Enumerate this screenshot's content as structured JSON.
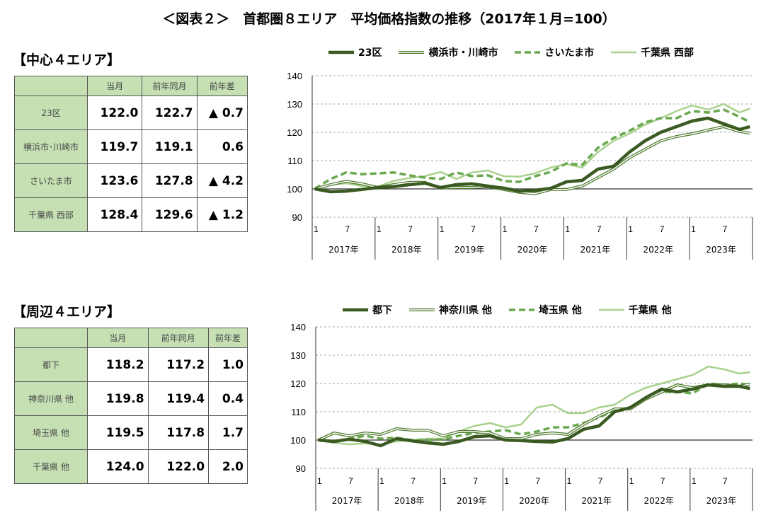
{
  "title": "＜図表２＞　首都圏８エリア　平均価格指数の推移（2017年１月=100）",
  "colors": {
    "header_bg": "#c6e0b4",
    "dark": "#3a5a22",
    "double": "#4e7a2e",
    "dashed": "#6aa84f",
    "light": "#a9d18e"
  },
  "tables": [
    {
      "heading": "【中心４エリア】",
      "columns": [
        "",
        "当月",
        "前年同月",
        "前年差"
      ],
      "rows": [
        {
          "label": "23区",
          "current": "122.0",
          "prev_year": "122.7",
          "diff": "▲ 0.7"
        },
        {
          "label": "横浜市･川崎市",
          "current": "119.7",
          "prev_year": "119.1",
          "diff": "0.6"
        },
        {
          "label": "さいたま市",
          "current": "123.6",
          "prev_year": "127.8",
          "diff": "▲ 4.2"
        },
        {
          "label": "千葉県 西部",
          "current": "128.4",
          "prev_year": "129.6",
          "diff": "▲ 1.2"
        }
      ]
    },
    {
      "heading": "【周辺４エリア】",
      "columns": [
        "",
        "当月",
        "前年同月",
        "前年差"
      ],
      "rows": [
        {
          "label": "都下",
          "current": "118.2",
          "prev_year": "117.2",
          "diff": "1.0"
        },
        {
          "label": "神奈川県 他",
          "current": "119.8",
          "prev_year": "119.4",
          "diff": "0.4"
        },
        {
          "label": "埼玉県 他",
          "current": "119.5",
          "prev_year": "117.8",
          "diff": "1.7"
        },
        {
          "label": "千葉県 他",
          "current": "124.0",
          "prev_year": "122.0",
          "diff": "2.0"
        }
      ]
    }
  ],
  "chart_data": [
    {
      "type": "line",
      "ylim": [
        90,
        140
      ],
      "yticks": [
        90,
        100,
        110,
        120,
        130,
        140
      ],
      "grid": "dashed horizontal",
      "reference_line": 100,
      "legend": "top",
      "month_ticks": [
        "1",
        "7"
      ],
      "years": [
        "2017年",
        "2018年",
        "2019年",
        "2020年",
        "2021年",
        "2022年",
        "2023年"
      ],
      "x": [
        "2017-01",
        "2017-04",
        "2017-07",
        "2017-10",
        "2018-01",
        "2018-04",
        "2018-07",
        "2018-10",
        "2019-01",
        "2019-04",
        "2019-07",
        "2019-10",
        "2020-01",
        "2020-04",
        "2020-07",
        "2020-10",
        "2021-01",
        "2021-04",
        "2021-07",
        "2021-10",
        "2022-01",
        "2022-04",
        "2022-07",
        "2022-10",
        "2023-01",
        "2023-04",
        "2023-07",
        "2023-10",
        "2023-12"
      ],
      "series": [
        {
          "name": "23区",
          "style": "dark",
          "values": [
            100,
            99,
            99.2,
            99.8,
            100.5,
            100.8,
            101.5,
            102,
            100.5,
            101.5,
            101.8,
            101,
            100.3,
            99.2,
            99.5,
            100.2,
            102.5,
            103,
            107,
            108,
            113,
            117,
            120,
            122,
            124,
            125,
            123,
            121,
            122
          ]
        },
        {
          "name": "横浜市・川崎市",
          "style": "double",
          "values": [
            100,
            101.5,
            102.7,
            101.8,
            100.5,
            101.5,
            102.3,
            102.3,
            100.3,
            100.5,
            100.5,
            100.8,
            99.8,
            98.8,
            98.3,
            99.8,
            99.8,
            101,
            104,
            107,
            111,
            114,
            117,
            118.5,
            119.5,
            120.8,
            122,
            120.3,
            119.7
          ]
        },
        {
          "name": "さいたま市",
          "style": "dashed",
          "values": [
            100,
            103.5,
            105.8,
            105.2,
            105.5,
            105.8,
            104.8,
            104,
            103.5,
            105.8,
            104.5,
            104.8,
            102.8,
            102.5,
            104.5,
            106,
            109,
            108.5,
            114.5,
            118,
            120.5,
            123.5,
            125,
            125,
            127.5,
            127,
            128,
            125.5,
            123.6
          ]
        },
        {
          "name": "千葉県 西部",
          "style": "light",
          "values": [
            100,
            101.5,
            102,
            101,
            100.8,
            102.8,
            103.8,
            104.5,
            106,
            103.5,
            105.8,
            106.5,
            104.5,
            104.3,
            105.5,
            107.5,
            108.8,
            107.5,
            113,
            117,
            119.5,
            122.7,
            125,
            127.5,
            129.5,
            128,
            130,
            127,
            128.4
          ]
        }
      ]
    },
    {
      "type": "line",
      "ylim": [
        90,
        140
      ],
      "yticks": [
        90,
        100,
        110,
        120,
        130,
        140
      ],
      "grid": "dashed horizontal",
      "reference_line": 100,
      "legend": "top",
      "month_ticks": [
        "1",
        "7"
      ],
      "years": [
        "2017年",
        "2018年",
        "2019年",
        "2020年",
        "2021年",
        "2022年",
        "2023年"
      ],
      "x": [
        "2017-01",
        "2017-04",
        "2017-07",
        "2017-10",
        "2018-01",
        "2018-04",
        "2018-07",
        "2018-10",
        "2019-01",
        "2019-04",
        "2019-07",
        "2019-10",
        "2020-01",
        "2020-04",
        "2020-07",
        "2020-10",
        "2021-01",
        "2021-04",
        "2021-07",
        "2021-10",
        "2022-01",
        "2022-04",
        "2022-07",
        "2022-10",
        "2023-01",
        "2023-04",
        "2023-07",
        "2023-10",
        "2023-12"
      ],
      "series": [
        {
          "name": "都下",
          "style": "dark",
          "values": [
            100,
            99.5,
            100.3,
            99.5,
            98,
            100.5,
            99.7,
            99,
            98.5,
            99.5,
            101.2,
            101.5,
            100,
            99.8,
            99.5,
            99.3,
            100.5,
            103.8,
            105,
            110,
            111.5,
            115,
            118,
            117,
            118,
            119.5,
            119,
            119,
            118.2
          ]
        },
        {
          "name": "神奈川県 他",
          "style": "double",
          "values": [
            100,
            102.5,
            101.5,
            102.5,
            102,
            104,
            103.5,
            103.5,
            101.5,
            103,
            103,
            102.5,
            100.5,
            100.5,
            102,
            102.5,
            102,
            105.5,
            108.5,
            111,
            111,
            114.5,
            117,
            119.5,
            118.5,
            119.5,
            119.5,
            119,
            119.8
          ]
        },
        {
          "name": "埼玉県 他",
          "style": "dashed",
          "values": [
            100,
            99.5,
            100.5,
            101.5,
            100.5,
            100.8,
            100,
            100,
            100.2,
            101.5,
            102.5,
            103,
            103.5,
            102,
            103,
            104.5,
            104.5,
            106,
            108,
            110.5,
            111.5,
            114.5,
            117,
            117,
            116.5,
            120,
            119.5,
            120,
            119.5
          ]
        },
        {
          "name": "千葉県 他",
          "style": "light",
          "values": [
            100,
            99,
            98.5,
            98.8,
            98.5,
            99.5,
            100,
            100.5,
            100.5,
            103,
            105,
            106,
            104.5,
            105.5,
            111.5,
            112.5,
            109.5,
            109.5,
            111.5,
            112.5,
            116,
            118.5,
            120,
            121.5,
            123,
            126,
            125,
            123.5,
            124
          ]
        }
      ]
    }
  ]
}
